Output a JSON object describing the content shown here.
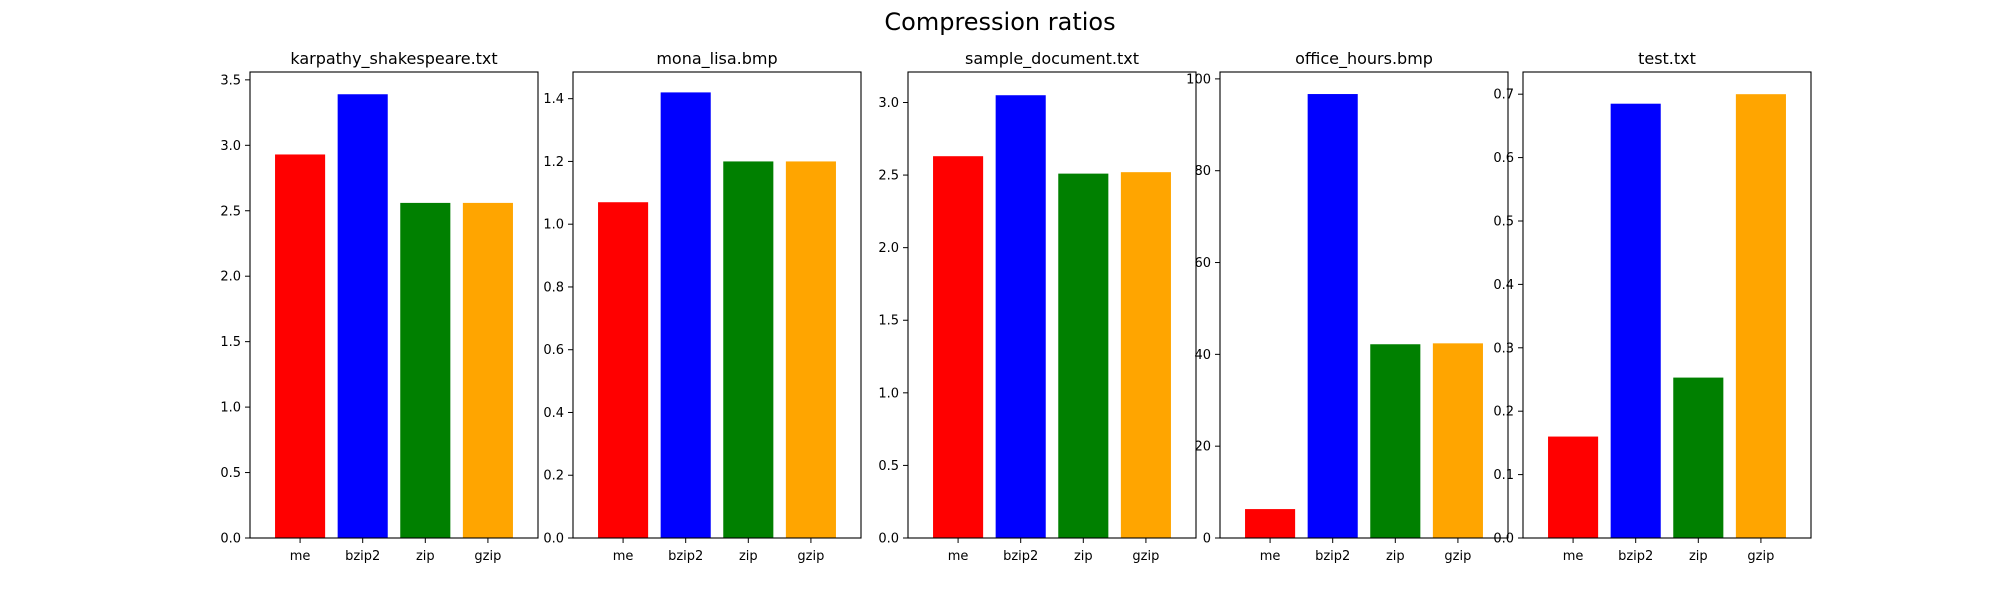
{
  "figure": {
    "title": "Compression ratios"
  },
  "colors": {
    "me": "#ff0000",
    "bzip2": "#0000ff",
    "zip": "#008000",
    "gzip": "#ffa500"
  },
  "chart_data": [
    {
      "type": "bar",
      "title": "karpathy_shakespeare.txt",
      "categories": [
        "me",
        "bzip2",
        "zip",
        "gzip"
      ],
      "values": [
        2.93,
        3.39,
        2.56,
        2.56
      ],
      "ylim": [
        0,
        3.56
      ],
      "yticks": [
        "0.0",
        "0.5",
        "1.0",
        "1.5",
        "2.0",
        "2.5",
        "3.0",
        "3.5"
      ],
      "grid": false
    },
    {
      "type": "bar",
      "title": "mona_lisa.bmp",
      "categories": [
        "me",
        "bzip2",
        "zip",
        "gzip"
      ],
      "values": [
        1.07,
        1.42,
        1.2,
        1.2
      ],
      "ylim": [
        0,
        1.485
      ],
      "yticks": [
        "0.0",
        "0.2",
        "0.4",
        "0.6",
        "0.8",
        "1.0",
        "1.2",
        "1.4"
      ],
      "grid": false
    },
    {
      "type": "bar",
      "title": "sample_document.txt",
      "categories": [
        "me",
        "bzip2",
        "zip",
        "gzip"
      ],
      "values": [
        2.63,
        3.05,
        2.51,
        2.52
      ],
      "ylim": [
        0,
        3.21
      ],
      "yticks": [
        "0.0",
        "0.5",
        "1.0",
        "1.5",
        "2.0",
        "2.5",
        "3.0"
      ],
      "grid": false
    },
    {
      "type": "bar",
      "title": "office_hours.bmp",
      "categories": [
        "me",
        "bzip2",
        "zip",
        "gzip"
      ],
      "values": [
        6.3,
        96.7,
        42.2,
        42.4
      ],
      "ylim": [
        0,
        101.5
      ],
      "yticks": [
        "0",
        "20",
        "40",
        "60",
        "80",
        "100"
      ],
      "grid": false
    },
    {
      "type": "bar",
      "title": "test.txt",
      "categories": [
        "me",
        "bzip2",
        "zip",
        "gzip"
      ],
      "values": [
        0.16,
        0.685,
        0.253,
        0.7
      ],
      "ylim": [
        0,
        0.735
      ],
      "yticks": [
        "0.0",
        "0.1",
        "0.2",
        "0.3",
        "0.4",
        "0.5",
        "0.6",
        "0.7"
      ],
      "grid": false
    }
  ]
}
